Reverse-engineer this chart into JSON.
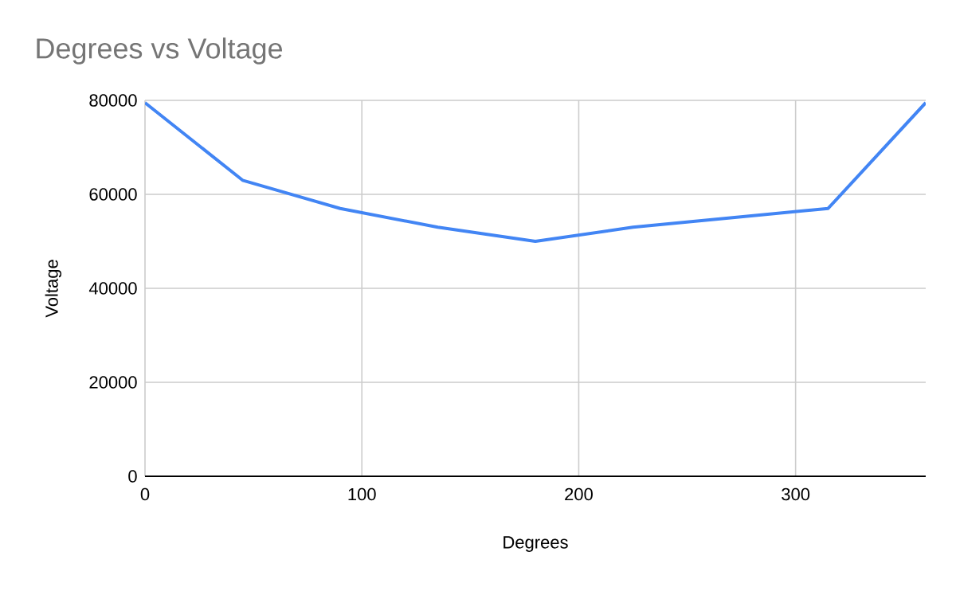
{
  "chart_data": {
    "type": "line",
    "title": "Degrees vs Voltage",
    "xlabel": "Degrees",
    "ylabel": "Voltage",
    "x": [
      0,
      45,
      90,
      135,
      180,
      225,
      270,
      315,
      360
    ],
    "series": [
      {
        "color": "#4285f4",
        "values": [
          79500,
          63000,
          57000,
          53000,
          50000,
          53000,
          55000,
          57000,
          79500
        ]
      }
    ],
    "xlim": [
      0,
      360
    ],
    "ylim": [
      0,
      80000
    ],
    "xticks": [
      0,
      100,
      200,
      300
    ],
    "yticks": [
      0,
      20000,
      40000,
      60000,
      80000
    ],
    "grid": true,
    "marker": "none",
    "line_style": "solid"
  }
}
